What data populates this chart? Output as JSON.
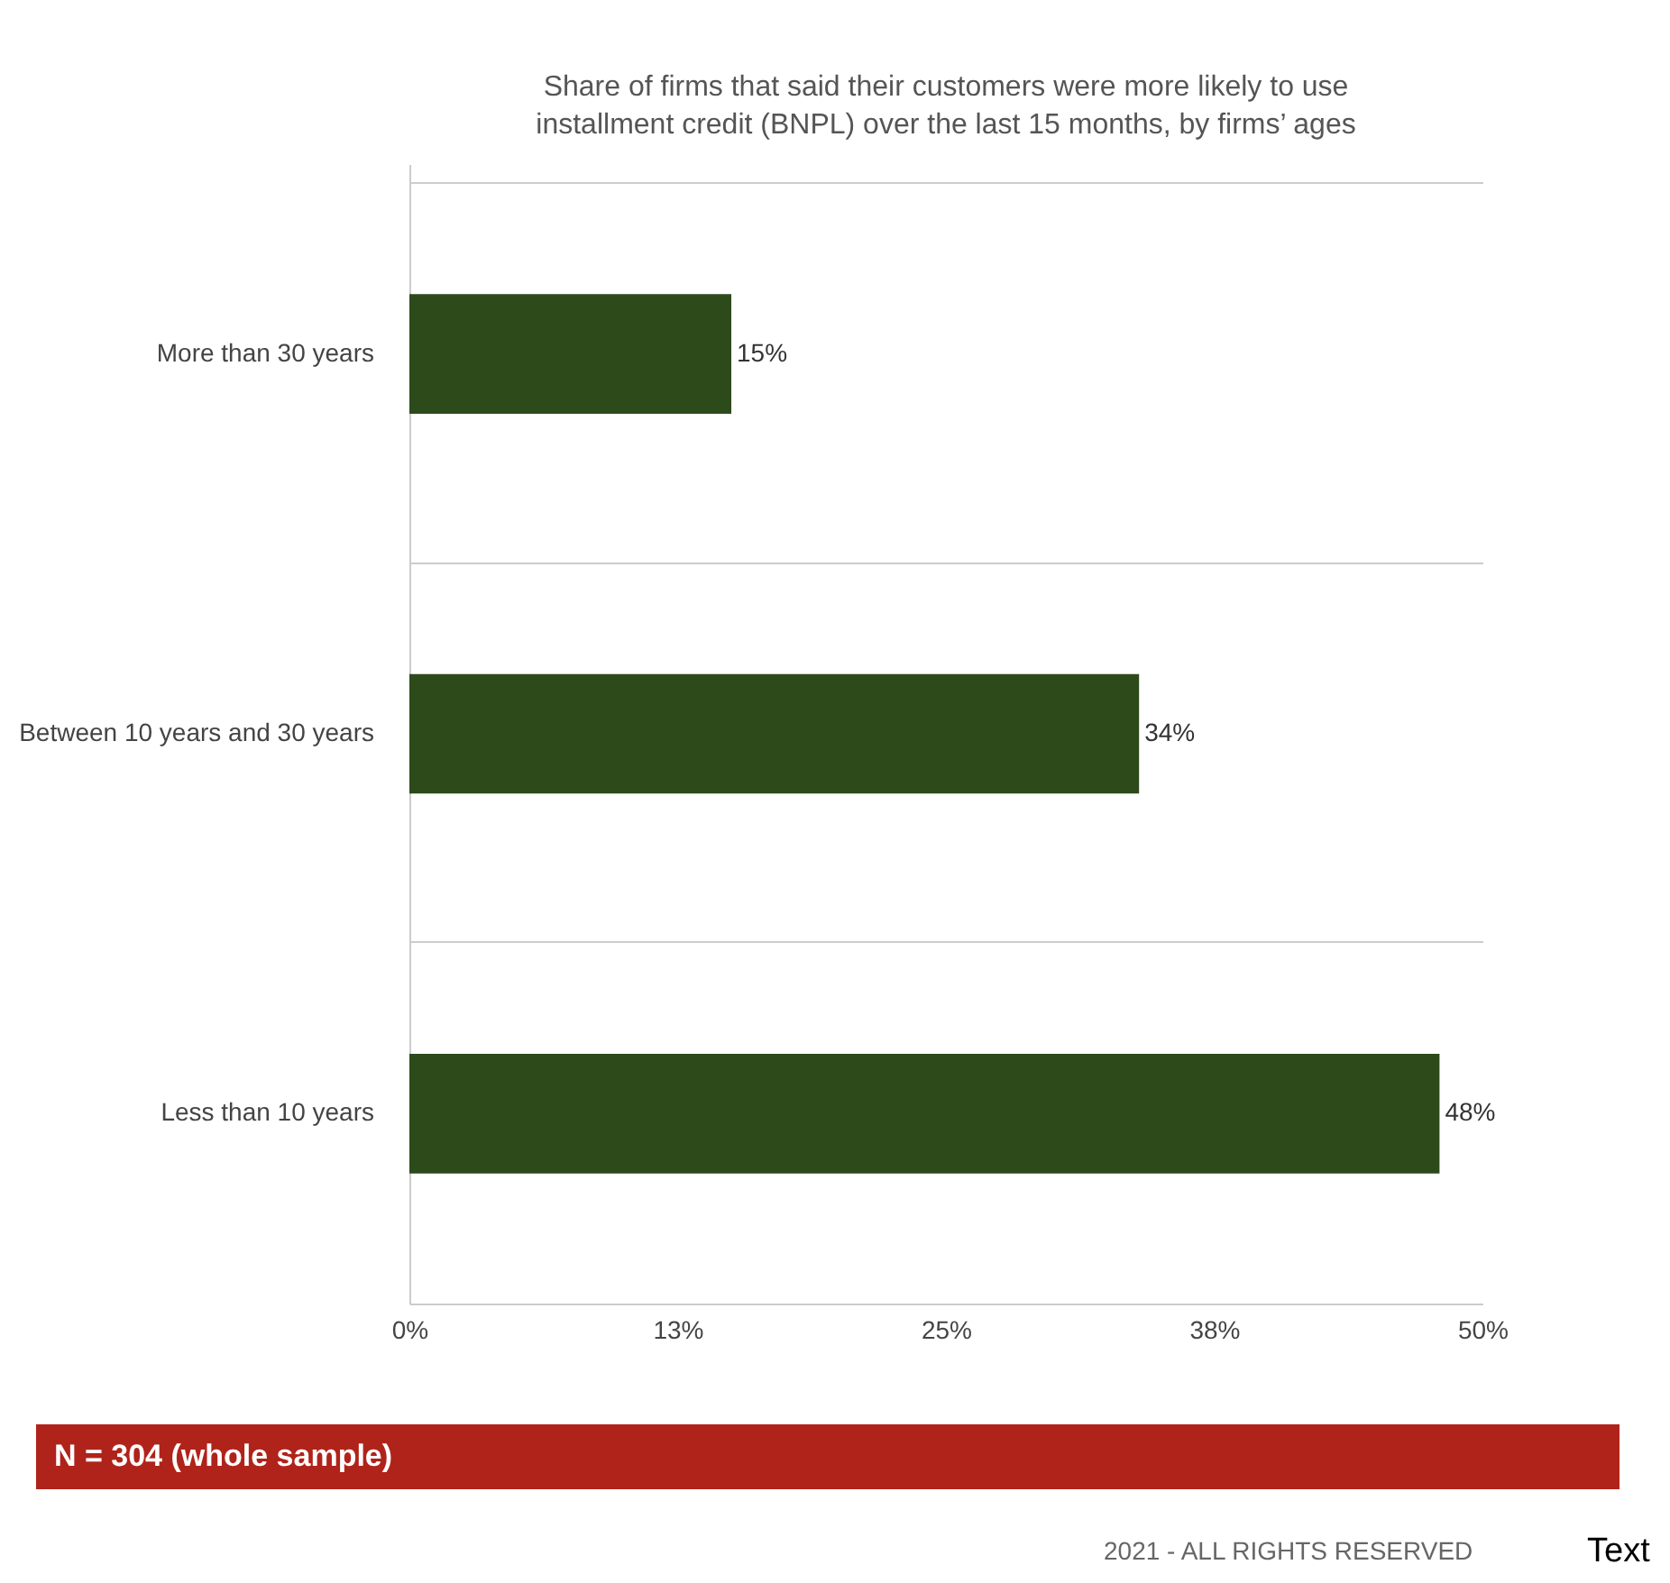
{
  "chart_data": {
    "type": "bar",
    "orientation": "horizontal",
    "title": "Share of firms that said their customers were more likely to use installment credit (BNPL) over the last 15 months, by firms’ ages",
    "categories": [
      "More than 30 years",
      "Between 10 years and 30 years",
      "Less than 10 years"
    ],
    "values": [
      15,
      34,
      48
    ],
    "value_labels": [
      "15%",
      "34%",
      "48%"
    ],
    "color": "#2d4a1b",
    "xlim": [
      0,
      50
    ],
    "xticks": [
      {
        "value": 0,
        "label": "0%"
      },
      {
        "value": 12.5,
        "label": "13%"
      },
      {
        "value": 25,
        "label": "25%"
      },
      {
        "value": 37.5,
        "label": "38%"
      },
      {
        "value": 50,
        "label": "50%"
      }
    ],
    "grid": "y",
    "annotations": [
      "N = 304 (whole sample)",
      "2021 - ALL RIGHTS RESERVED",
      "Text"
    ]
  }
}
